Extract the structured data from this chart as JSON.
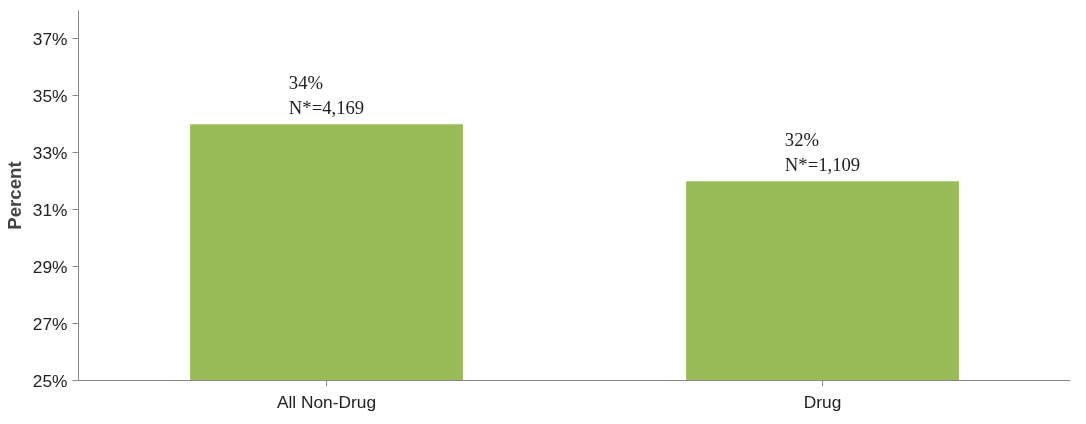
{
  "chart_data": {
    "type": "bar",
    "ylabel": "Percent",
    "categories": [
      "All Non-Drug",
      "Drug"
    ],
    "values": [
      34,
      32
    ],
    "color": "#9bbb59",
    "value_labels": [
      "34%\nN*=4,169",
      "32%\nN*=1,109"
    ],
    "ylim": [
      25,
      38
    ],
    "yticks": [
      {
        "value": 25,
        "label": "25%"
      },
      {
        "value": 27,
        "label": "27%"
      },
      {
        "value": 29,
        "label": "29%"
      },
      {
        "value": 31,
        "label": "31%"
      },
      {
        "value": 33,
        "label": "33%"
      },
      {
        "value": 35,
        "label": "35%"
      },
      {
        "value": 37,
        "label": "37%"
      }
    ],
    "grid": false
  }
}
